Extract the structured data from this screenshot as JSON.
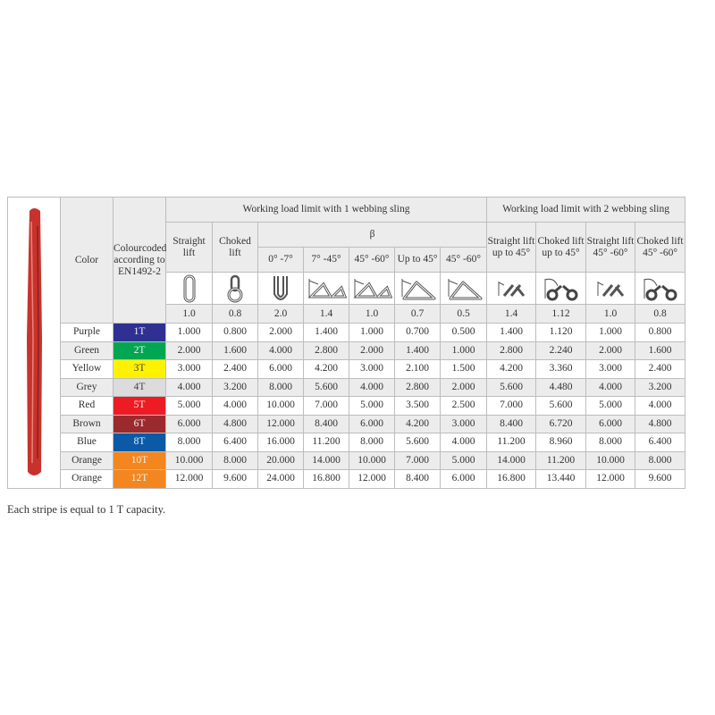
{
  "table": {
    "group1": "Working load limit with 1 webbing sling",
    "group2": "Working load limit with 2 webbing sling",
    "color_header": "Color",
    "code_header": "Colourcoded according to EN1492-2",
    "straight": "Straight lift",
    "choked": "Choked lift",
    "beta": "β",
    "angles": [
      "0° -7°",
      "7° -45°",
      "45° -60°",
      "Up to 45°",
      "45° -60°"
    ],
    "two_sling_headers": [
      "Straight lift up to 45°",
      "Choked lift up to 45°",
      "Straight lift 45° -60°",
      "Choked lift 45° -60°"
    ],
    "icons": [
      "straight-loop",
      "choked-loop",
      "basket-vertical",
      "basket-angle",
      "basket-angle",
      "basket-triangle",
      "basket-triangle",
      "two-straight",
      "two-choked",
      "two-straight",
      "two-choked"
    ],
    "factors": [
      "1.0",
      "0.8",
      "2.0",
      "1.4",
      "1.0",
      "0.7",
      "0.5",
      "1.4",
      "1.12",
      "1.0",
      "0.8"
    ],
    "rows": [
      {
        "name": "Purple",
        "code": "1T",
        "bg": "#2e3192",
        "fg": "#f0f0f0",
        "values": [
          "1.000",
          "0.800",
          "2.000",
          "1.400",
          "1.000",
          "0.700",
          "0.500",
          "1.400",
          "1.120",
          "1.000",
          "0.800"
        ]
      },
      {
        "name": "Green",
        "code": "2T",
        "bg": "#00a651",
        "fg": "#f0f0f0",
        "values": [
          "2.000",
          "1.600",
          "4.000",
          "2.800",
          "2.000",
          "1.400",
          "1.000",
          "2.800",
          "2.240",
          "2.000",
          "1.600"
        ]
      },
      {
        "name": "Yellow",
        "code": "3T",
        "bg": "#fff200",
        "fg": "#444444",
        "values": [
          "3.000",
          "2.400",
          "6.000",
          "4.200",
          "3.000",
          "2.100",
          "1.500",
          "4.200",
          "3.360",
          "3.000",
          "2.400"
        ]
      },
      {
        "name": "Grey",
        "code": "4T",
        "bg": "#dcdcdc",
        "fg": "#444444",
        "values": [
          "4.000",
          "3.200",
          "8.000",
          "5.600",
          "4.000",
          "2.800",
          "2.000",
          "5.600",
          "4.480",
          "4.000",
          "3.200"
        ]
      },
      {
        "name": "Red",
        "code": "5T",
        "bg": "#ed1c24",
        "fg": "#f0f0f0",
        "values": [
          "5.000",
          "4.000",
          "10.000",
          "7.000",
          "5.000",
          "3.500",
          "2.500",
          "7.000",
          "5.600",
          "5.000",
          "4.000"
        ]
      },
      {
        "name": "Brown",
        "code": "6T",
        "bg": "#9b2a2e",
        "fg": "#f0f0f0",
        "values": [
          "6.000",
          "4.800",
          "12.000",
          "8.400",
          "6.000",
          "4.200",
          "3.000",
          "8.400",
          "6.720",
          "6.000",
          "4.800"
        ]
      },
      {
        "name": "Blue",
        "code": "8T",
        "bg": "#0a5aa8",
        "fg": "#f0f0f0",
        "values": [
          "8.000",
          "6.400",
          "16.000",
          "11.200",
          "8.000",
          "5.600",
          "4.000",
          "11.200",
          "8.960",
          "8.000",
          "6.400"
        ]
      },
      {
        "name": "Orange",
        "code": "10T",
        "bg": "#f4861f",
        "fg": "#f0f0f0",
        "values": [
          "10.000",
          "8.000",
          "20.000",
          "14.000",
          "10.000",
          "7.000",
          "5.000",
          "14.000",
          "11.200",
          "10.000",
          "8.000"
        ]
      },
      {
        "name": "Orange",
        "code": "12T",
        "bg": "#f4861f",
        "fg": "#f0f0f0",
        "values": [
          "12.000",
          "9.600",
          "24.000",
          "16.800",
          "12.000",
          "8.400",
          "6.000",
          "16.800",
          "13.440",
          "12.000",
          "9.600"
        ]
      }
    ]
  },
  "note": "Each stripe is equal to 1 T capacity.",
  "sling_color": "#c8322c"
}
